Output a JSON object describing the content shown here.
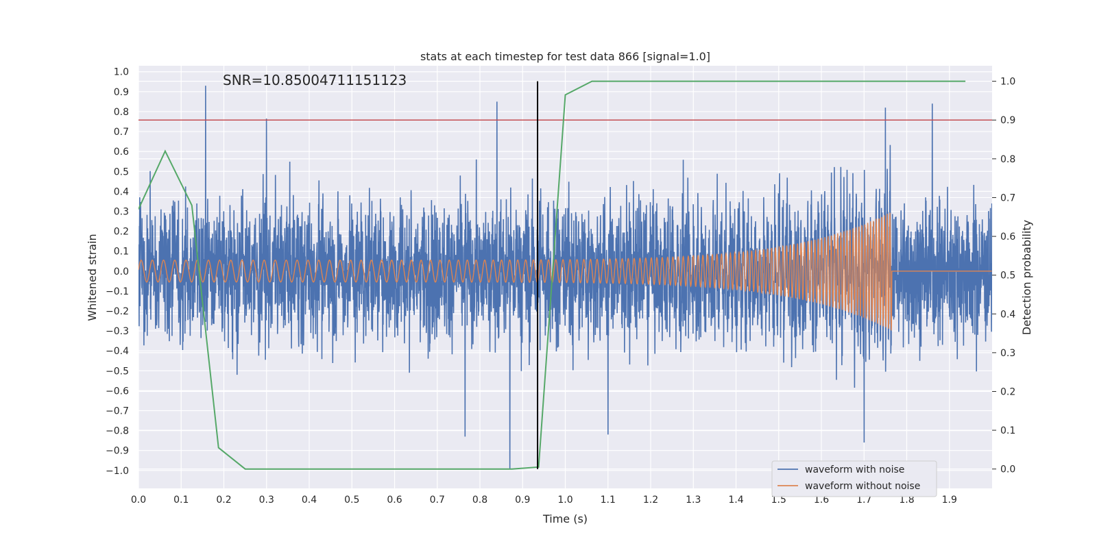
{
  "chart_data": {
    "type": "line",
    "title": "stats at each timestep for test data 866 [signal=1.0]",
    "xlabel": "Time (s)",
    "ylabel_left": "Whitened strain",
    "ylabel_right": "Detection probability",
    "xlim": [
      0.0,
      2.0
    ],
    "ylim_left": [
      -1.09,
      1.03
    ],
    "ylim_right": [
      -0.05,
      1.04
    ],
    "x_ticks": [
      "0.0",
      "0.1",
      "0.2",
      "0.3",
      "0.4",
      "0.5",
      "0.6",
      "0.7",
      "0.8",
      "0.9",
      "1.0",
      "1.1",
      "1.2",
      "1.3",
      "1.4",
      "1.5",
      "1.6",
      "1.7",
      "1.8",
      "1.9"
    ],
    "y_ticks_left": [
      "−1.0",
      "−0.9",
      "−0.8",
      "−0.7",
      "−0.6",
      "−0.5",
      "−0.4",
      "−0.3",
      "−0.2",
      "−0.1",
      "0.0",
      "0.1",
      "0.2",
      "0.3",
      "0.4",
      "0.5",
      "0.6",
      "0.7",
      "0.8",
      "0.9",
      "1.0"
    ],
    "y_ticks_right": [
      "0.0",
      "0.1",
      "0.2",
      "0.3",
      "0.4",
      "0.5",
      "0.6",
      "0.7",
      "0.8",
      "0.9",
      "1.0"
    ],
    "grid": true,
    "legend_position": "bottom-right",
    "annotation": "SNR=10.85004711151123",
    "series": [
      {
        "name": "waveform with noise",
        "axis": "left",
        "color": "#4c72b0",
        "sample_rate": 2048,
        "amplitude_std": 0.25,
        "peaks": [
          [
            0.157,
            0.93
          ],
          [
            0.3,
            0.75
          ],
          [
            0.84,
            0.85
          ],
          [
            0.87,
            -0.99
          ],
          [
            1.1,
            -0.82
          ],
          [
            1.75,
            0.82
          ],
          [
            1.86,
            0.84
          ],
          [
            1.7,
            -0.86
          ],
          [
            0.765,
            -0.83
          ]
        ]
      },
      {
        "name": "waveform without noise",
        "axis": "left",
        "color": "#dd8452",
        "chirp_start_freq": 38,
        "chirp_end_freq": 160,
        "merger_time": 1.765,
        "start_amplitude": 0.055,
        "peak_amplitude": 0.3,
        "ringdown_level": 0.0
      },
      {
        "name": "detection probability",
        "axis": "right",
        "color": "#55a868",
        "x": [
          0.0,
          0.0625,
          0.125,
          0.1875,
          0.25,
          0.875,
          0.9375,
          1.0,
          1.0625,
          1.9375
        ],
        "y": [
          0.67,
          0.82,
          0.68,
          0.055,
          0.0,
          0.0,
          0.005,
          0.965,
          1.0,
          1.0
        ]
      }
    ],
    "threshold_line": {
      "axis": "right",
      "y": 0.9,
      "color": "#c44e52"
    },
    "vertical_line": {
      "x": 0.935,
      "y_right": [
        0.0,
        1.0
      ],
      "color": "#000000"
    }
  }
}
